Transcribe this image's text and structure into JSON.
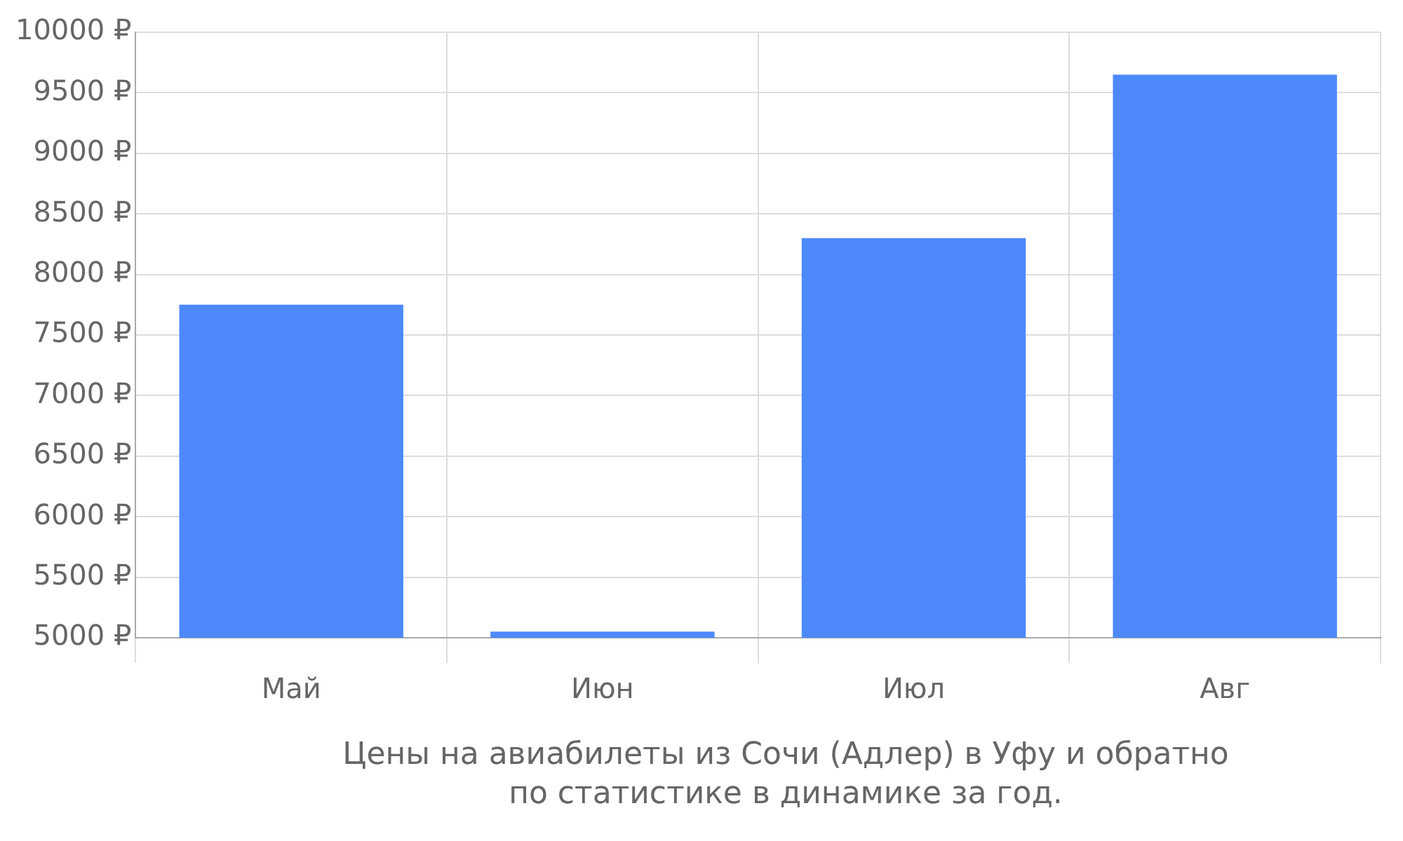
{
  "chart_data": {
    "type": "bar",
    "categories": [
      "Май",
      "Июн",
      "Июл",
      "Авг"
    ],
    "values": [
      7750,
      5050,
      8300,
      9650
    ],
    "color": "#4d89fb",
    "ylim": [
      5000,
      10000
    ],
    "yticks": [
      {
        "value": 5000,
        "label": "5000 ₽"
      },
      {
        "value": 5500,
        "label": "5500 ₽"
      },
      {
        "value": 6000,
        "label": "6000 ₽"
      },
      {
        "value": 6500,
        "label": "6500 ₽"
      },
      {
        "value": 7000,
        "label": "7000 ₽"
      },
      {
        "value": 7500,
        "label": "7500 ₽"
      },
      {
        "value": 8000,
        "label": "8000 ₽"
      },
      {
        "value": 8500,
        "label": "8500 ₽"
      },
      {
        "value": 9000,
        "label": "9000 ₽"
      },
      {
        "value": 9500,
        "label": "9500 ₽"
      },
      {
        "value": 10000,
        "label": "10000 ₽"
      }
    ],
    "grid": true,
    "legend": false,
    "annotations": [
      "Цены на авиабилеты из Сочи (Адлер) в Уфу и обратно\nпо статистике в динамике за год."
    ]
  }
}
